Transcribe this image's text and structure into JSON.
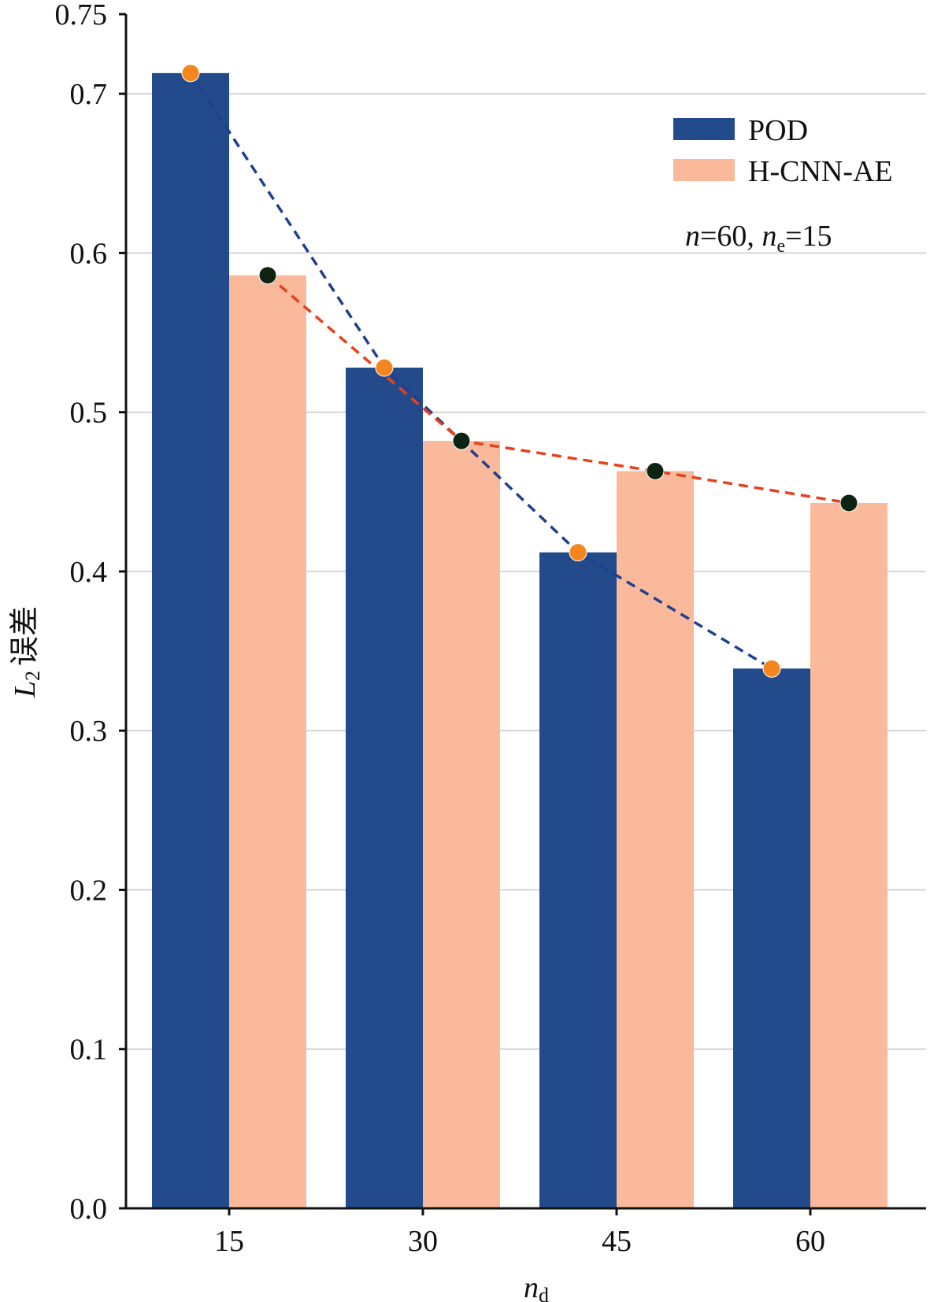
{
  "chart_data": {
    "type": "bar",
    "categories": [
      "15",
      "30",
      "45",
      "60"
    ],
    "series": [
      {
        "name": "POD",
        "values": [
          0.713,
          0.528,
          0.412,
          0.339
        ],
        "color": "#234a8a",
        "marker_color": "#f5861f",
        "line_color": "#1f3f8f"
      },
      {
        "name": "H-CNN-AE",
        "values": [
          0.586,
          0.482,
          0.463,
          0.443
        ],
        "color": "#f9b99a",
        "marker_color": "#0e2412",
        "line_color": "#e8401c"
      }
    ],
    "ylim": [
      0.0,
      0.75
    ],
    "yticks": [
      "0.0",
      "0.1",
      "0.2",
      "0.3",
      "0.4",
      "0.5",
      "0.6",
      "0.7",
      "0.75"
    ],
    "ytick_values": [
      0.0,
      0.1,
      0.2,
      0.3,
      0.4,
      0.5,
      0.6,
      0.7,
      0.75
    ],
    "grid_values": [
      0.1,
      0.2,
      0.3,
      0.4,
      0.5,
      0.6,
      0.7
    ],
    "xlabel": {
      "main": "n",
      "sub": "d"
    },
    "ylabel": {
      "main": "L",
      "sub": "2",
      "suffix": "误差"
    },
    "annotation": {
      "n_label": "n",
      "n_value": "=60, ",
      "ne_label": "n",
      "ne_sub": "e",
      "ne_value": "=15"
    },
    "legend_position": "top-right",
    "grid": true
  }
}
